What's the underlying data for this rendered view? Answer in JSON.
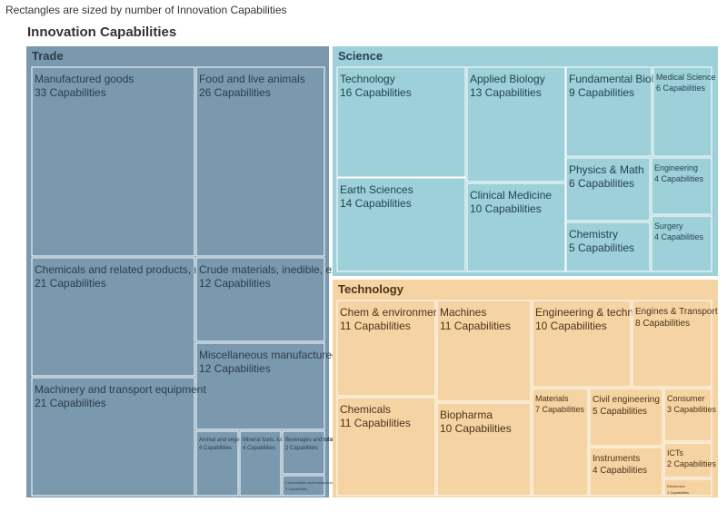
{
  "subtitle": "Rectangles are sized by number of Innovation Capabilities",
  "colors": {
    "Trade": "#7a99ae",
    "Science": "#9dd0d8",
    "Technology": "#f6d3a3",
    "Trade_text": "#2b3d4c",
    "Science_text": "#234550",
    "Technology_text": "#4a3418",
    "gap": "#ffffff"
  },
  "chart_data": {
    "type": "treemap",
    "title": "Innovation Capabilities",
    "size_measure": "Capabilities",
    "groups": [
      {
        "name": "Trade",
        "items": [
          {
            "name": "Manufactured goods",
            "value": 33,
            "label": "33 Capabilities"
          },
          {
            "name": "Food and live animals",
            "value": 26,
            "label": "26 Capabilities"
          },
          {
            "name": "Chemicals and related products, n.e.s.",
            "value": 21,
            "label": "21 Capabilities"
          },
          {
            "name": "Crude materials, inedible, except fuels",
            "value": 12,
            "label": "12 Capabilities"
          },
          {
            "name": "Miscellaneous manufactured articles",
            "value": 12,
            "label": "12 Capabilities"
          },
          {
            "name": "Machinery and transport equipment",
            "value": 21,
            "label": "21 Capabilities"
          },
          {
            "name": "Animal and vegetable oils, fats and waxes",
            "value": 4,
            "label": "4 Capabilities"
          },
          {
            "name": "Mineral fuels, lubricants and related materials",
            "value": 4,
            "label": "4 Capabilities"
          },
          {
            "name": "Beverages and tobacco",
            "value": 2,
            "label": "2 Capabilities"
          },
          {
            "name": "Commodities and transactions n.e.s.",
            "value": 1,
            "label": "1 Capabilities"
          }
        ]
      },
      {
        "name": "Science",
        "items": [
          {
            "name": "Technology",
            "value": 16,
            "label": "16 Capabilities"
          },
          {
            "name": "Earth Sciences",
            "value": 14,
            "label": "14 Capabilities"
          },
          {
            "name": "Applied Biology",
            "value": 13,
            "label": "13 Capabilities"
          },
          {
            "name": "Clinical Medicine",
            "value": 10,
            "label": "10 Capabilities"
          },
          {
            "name": "Fundamental Biology",
            "value": 9,
            "label": "9 Capabilities"
          },
          {
            "name": "Medical Science",
            "value": 6,
            "label": "6 Capabilities"
          },
          {
            "name": "Physics & Math",
            "value": 6,
            "label": "6 Capabilities"
          },
          {
            "name": "Engineering",
            "value": 4,
            "label": "4 Capabilities"
          },
          {
            "name": "Chemistry",
            "value": 5,
            "label": "5 Capabilities"
          },
          {
            "name": "Surgery",
            "value": 4,
            "label": "4 Capabilities"
          }
        ]
      },
      {
        "name": "Technology",
        "items": [
          {
            "name": "Chem & environment",
            "value": 11,
            "label": "11 Capabilities"
          },
          {
            "name": "Chemicals",
            "value": 11,
            "label": "11 Capabilities"
          },
          {
            "name": "Machines",
            "value": 11,
            "label": "11 Capabilities"
          },
          {
            "name": "Biopharma",
            "value": 10,
            "label": "10 Capabilities"
          },
          {
            "name": "Engineering & technology",
            "value": 10,
            "label": "10 Capabilities"
          },
          {
            "name": "Engines & Transport",
            "value": 8,
            "label": "8 Capabilities"
          },
          {
            "name": "Materials",
            "value": 7,
            "label": "7 Capabilities"
          },
          {
            "name": "Civil engineering",
            "value": 5,
            "label": "5 Capabilities"
          },
          {
            "name": "Instruments",
            "value": 4,
            "label": "4 Capabilities"
          },
          {
            "name": "Consumer",
            "value": 3,
            "label": "3 Capabilities"
          },
          {
            "name": "ICTs",
            "value": 2,
            "label": "2 Capabilities"
          },
          {
            "name": "Electronics",
            "value": 1,
            "label": "1 Capabilities"
          }
        ]
      }
    ]
  }
}
